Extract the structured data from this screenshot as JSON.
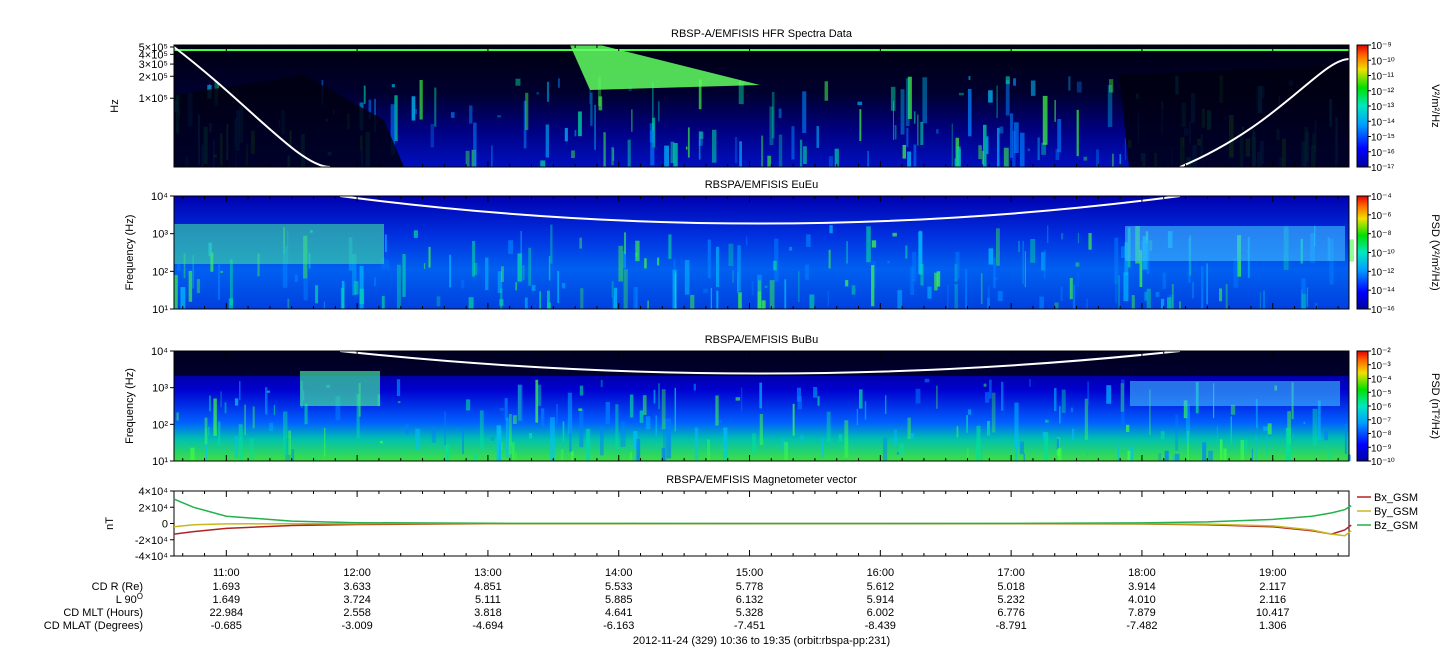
{
  "chart_data": [
    {
      "type": "heatmap",
      "title": "RBSP-A/EMFISIS  HFR Spectra Data",
      "ylabel": "Hz",
      "yticks": [
        "5×10^5",
        "4×10^5",
        "3×10^5",
        "2×10^5",
        "1×10^5"
      ],
      "colorbar": {
        "label": "V^2/m^2/Hz",
        "ticks": [
          "10^-9",
          "10^-10",
          "10^-11",
          "10^-12",
          "10^-13",
          "10^-14",
          "10^-15",
          "10^-16",
          "10^-17"
        ]
      }
    },
    {
      "type": "heatmap",
      "title": "RBSPA/EMFISIS  EuEu",
      "ylabel": "Frequency (Hz)",
      "yticks": [
        "10^4",
        "10^3",
        "10^2",
        "10^1"
      ],
      "colorbar": {
        "label": "PSD (V^2/m^2/Hz)",
        "ticks": [
          "10^-4",
          "10^-6",
          "10^-8",
          "10^-10",
          "10^-12",
          "10^-14",
          "10^-16"
        ]
      }
    },
    {
      "type": "heatmap",
      "title": "RBSPA/EMFISIS  BuBu",
      "ylabel": "Frequency (Hz)",
      "yticks": [
        "10^4",
        "10^3",
        "10^2",
        "10^1"
      ],
      "colorbar": {
        "label": "PSD (nT^2/Hz)",
        "ticks": [
          "10^-2",
          "10^-3",
          "10^-4",
          "10^-5",
          "10^-6",
          "10^-7",
          "10^-8",
          "10^-9",
          "10^-10"
        ]
      }
    },
    {
      "type": "line",
      "title": "RBSPA/EMFISIS  Magnetometer vector",
      "ylabel": "nT",
      "yticks": [
        "4×10^4",
        "2×10^4",
        "0",
        "-2×10^4",
        "-4×10^4"
      ],
      "ylim": [
        -40000,
        40000
      ],
      "series": [
        {
          "name": "Bx_GSM",
          "color": "#b22222",
          "x": [
            10.6,
            10.75,
            11.0,
            11.5,
            12.0,
            13.0,
            14.0,
            15.0,
            16.0,
            17.0,
            18.0,
            18.5,
            19.0,
            19.3,
            19.45,
            19.55,
            19.6
          ],
          "y": [
            -13000,
            -10000,
            -6000,
            -2500,
            -1200,
            -400,
            -200,
            -100,
            -100,
            -200,
            -600,
            -1500,
            -4000,
            -9000,
            -13000,
            -8000,
            -2000
          ]
        },
        {
          "name": "By_GSM",
          "color": "#c8b820",
          "x": [
            10.6,
            10.75,
            11.0,
            11.5,
            12.0,
            13.0,
            14.0,
            15.0,
            16.0,
            17.0,
            18.0,
            18.5,
            19.0,
            19.3,
            19.45,
            19.55,
            19.6
          ],
          "y": [
            -4000,
            -1500,
            -500,
            -300,
            -200,
            -100,
            -100,
            -100,
            -100,
            -100,
            -300,
            -800,
            -3000,
            -8000,
            -13000,
            -15000,
            -9000
          ]
        },
        {
          "name": "Bz_GSM",
          "color": "#22b14c",
          "x": [
            10.6,
            10.75,
            11.0,
            11.5,
            12.0,
            13.0,
            14.0,
            15.0,
            16.0,
            17.0,
            18.0,
            18.5,
            19.0,
            19.3,
            19.45,
            19.55,
            19.6
          ],
          "y": [
            30000,
            20000,
            9000,
            3000,
            1000,
            300,
            100,
            50,
            50,
            150,
            800,
            2000,
            5000,
            9000,
            13000,
            17000,
            22000
          ]
        }
      ]
    }
  ],
  "x_axis": {
    "start_hour": 10.6,
    "end_hour": 19.583,
    "tick_labels": [
      "11:00",
      "12:00",
      "13:00",
      "14:00",
      "15:00",
      "16:00",
      "17:00",
      "18:00",
      "19:00"
    ]
  },
  "ephemeris": {
    "rows": [
      {
        "label": "CD R (Re)",
        "values": [
          "1.693",
          "3.633",
          "4.851",
          "5.533",
          "5.778",
          "5.612",
          "5.018",
          "3.914",
          "2.117"
        ]
      },
      {
        "label": "L 90",
        "sup": "O",
        "values": [
          "1.649",
          "3.724",
          "5.111",
          "5.885",
          "6.132",
          "5.914",
          "5.232",
          "4.010",
          "2.116"
        ]
      },
      {
        "label": "CD MLT (Hours)",
        "values": [
          "22.984",
          "2.558",
          "3.818",
          "4.641",
          "5.328",
          "6.002",
          "6.776",
          "7.879",
          "10.417"
        ]
      },
      {
        "label": "CD MLAT (Degrees)",
        "values": [
          "-0.685",
          "-3.009",
          "-4.694",
          "-6.163",
          "-7.451",
          "-8.439",
          "-8.791",
          "-7.482",
          "1.306"
        ]
      }
    ]
  },
  "footer": "2012-11-24 (329) 10:36 to 19:35 (orbit:rbspa-pp:231)"
}
